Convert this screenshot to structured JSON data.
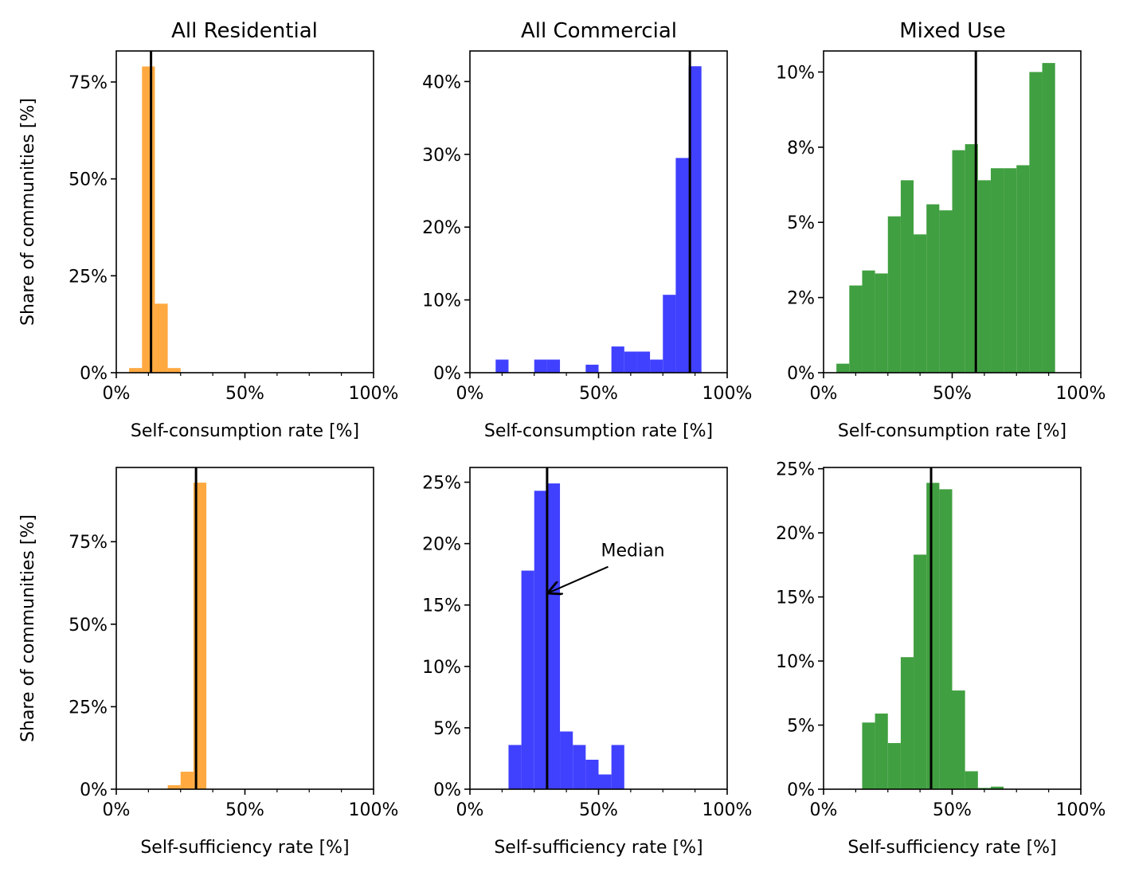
{
  "figure": {
    "column_titles": [
      "All Residential",
      "All Commercial",
      "Mixed Use"
    ],
    "row_ylabels": [
      "Share of communities [%]",
      "Share of communities [%]"
    ]
  },
  "chart_data": [
    {
      "id": "res-sc",
      "type": "bar",
      "title": "All Residential",
      "xlabel": "Self-consumption rate [%]",
      "ylabel": "Share of communities [%]",
      "color": "#ffa940",
      "bin_width": 5,
      "bin_starts": [
        5,
        10,
        15,
        20
      ],
      "values": [
        1.2,
        79.0,
        17.8,
        1.2
      ],
      "median": 13.5,
      "xlim": [
        0,
        100
      ],
      "ylim": [
        0,
        83
      ],
      "xticks": [
        0,
        50,
        100
      ],
      "xtick_labels": [
        "0%",
        "50%",
        "100%"
      ],
      "yticks": [
        0,
        25,
        50,
        75
      ],
      "ytick_labels": [
        "0%",
        "25%",
        "50%",
        "75%"
      ]
    },
    {
      "id": "com-sc",
      "type": "bar",
      "title": "All Commercial",
      "xlabel": "Self-consumption rate [%]",
      "ylabel": "",
      "color": "#4040ff",
      "bin_width": 5,
      "bin_starts": [
        10,
        25,
        30,
        45,
        55,
        60,
        65,
        70,
        75,
        80,
        85
      ],
      "values": [
        1.8,
        1.8,
        1.8,
        1.1,
        3.6,
        2.9,
        2.9,
        1.8,
        10.7,
        29.5,
        42.1
      ],
      "median": 85.5,
      "xlim": [
        0,
        100
      ],
      "ylim": [
        0,
        44.2
      ],
      "xticks": [
        0,
        50,
        100
      ],
      "xtick_labels": [
        "0%",
        "50%",
        "100%"
      ],
      "yticks": [
        0,
        10,
        20,
        30,
        40
      ],
      "ytick_labels": [
        "0%",
        "10%",
        "20%",
        "30%",
        "40%"
      ]
    },
    {
      "id": "mix-sc",
      "type": "bar",
      "title": "Mixed Use",
      "xlabel": "Self-consumption rate [%]",
      "ylabel": "",
      "color": "#409f40",
      "bin_width": 5,
      "bin_starts": [
        5,
        10,
        15,
        20,
        25,
        30,
        35,
        40,
        45,
        50,
        55,
        60,
        65,
        70,
        75,
        80,
        85
      ],
      "values": [
        0.3,
        2.9,
        3.4,
        3.3,
        5.2,
        6.4,
        4.6,
        5.6,
        5.4,
        7.4,
        7.6,
        6.4,
        6.8,
        6.8,
        6.9,
        10.0,
        10.3
      ],
      "median": 59.2,
      "xlim": [
        0,
        100
      ],
      "ylim": [
        0,
        10.7
      ],
      "xticks": [
        0,
        50,
        100
      ],
      "xtick_labels": [
        "0%",
        "50%",
        "100%"
      ],
      "yticks": [
        0,
        2.5,
        5,
        7.5,
        10
      ],
      "ytick_labels": [
        "0%",
        "2%",
        "5%",
        "8%",
        "10%"
      ]
    },
    {
      "id": "res-ss",
      "type": "bar",
      "title": "",
      "xlabel": "Self-sufficiency rate [%]",
      "ylabel": "Share of communities [%]",
      "color": "#ffa940",
      "bin_width": 5,
      "bin_starts": [
        20,
        25,
        30
      ],
      "values": [
        1.2,
        5.3,
        92.9
      ],
      "median": 31.0,
      "xlim": [
        0,
        100
      ],
      "ylim": [
        0,
        97.5
      ],
      "xticks": [
        0,
        50,
        100
      ],
      "xtick_labels": [
        "0%",
        "50%",
        "100%"
      ],
      "yticks": [
        0,
        25,
        50,
        75
      ],
      "ytick_labels": [
        "0%",
        "25%",
        "50%",
        "75%"
      ]
    },
    {
      "id": "com-ss",
      "type": "bar",
      "title": "",
      "xlabel": "Self-sufficiency rate [%]",
      "ylabel": "",
      "color": "#4040ff",
      "bin_width": 5,
      "bin_starts": [
        15,
        20,
        25,
        30,
        35,
        40,
        45,
        50,
        55
      ],
      "values": [
        3.6,
        17.8,
        24.3,
        24.9,
        4.7,
        3.6,
        2.4,
        1.2,
        3.6
      ],
      "median": 30.0,
      "xlim": [
        0,
        100
      ],
      "ylim": [
        0,
        26.2
      ],
      "xticks": [
        0,
        50,
        100
      ],
      "xtick_labels": [
        "0%",
        "50%",
        "100%"
      ],
      "yticks": [
        0,
        5,
        10,
        15,
        20,
        25
      ],
      "ytick_labels": [
        "0%",
        "5%",
        "10%",
        "15%",
        "20%",
        "25%"
      ],
      "annotation": {
        "text": "Median",
        "xy": [
          30,
          16.0
        ],
        "xytext": [
          50,
          18.7
        ]
      }
    },
    {
      "id": "mix-ss",
      "type": "bar",
      "title": "",
      "xlabel": "Self-sufficiency rate [%]",
      "ylabel": "",
      "color": "#409f40",
      "bin_width": 5,
      "bin_starts": [
        15,
        20,
        25,
        30,
        35,
        40,
        45,
        50,
        55,
        60,
        65
      ],
      "values": [
        5.2,
        5.9,
        3.6,
        10.3,
        18.3,
        23.9,
        23.4,
        7.7,
        1.4,
        0.1,
        0.2
      ],
      "median": 41.8,
      "xlim": [
        0,
        100
      ],
      "ylim": [
        0,
        25.1
      ],
      "xticks": [
        0,
        50,
        100
      ],
      "xtick_labels": [
        "0%",
        "50%",
        "100%"
      ],
      "yticks": [
        0,
        5,
        10,
        15,
        20,
        25
      ],
      "ytick_labels": [
        "0%",
        "5%",
        "10%",
        "15%",
        "20%",
        "25%"
      ]
    }
  ]
}
